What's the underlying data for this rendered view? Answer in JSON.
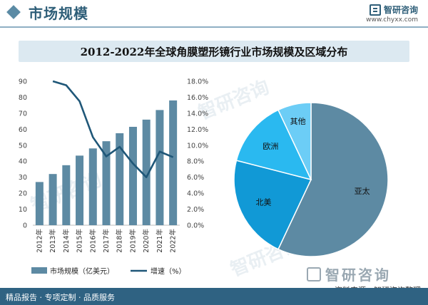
{
  "header": {
    "section_title": "市场规模",
    "brand_name": "智研咨询",
    "brand_url": "www.chyxx.com"
  },
  "title": "2012-2022年全球角膜塑形镜行业市场规模及区域分布",
  "watermark_text": "智研咨询",
  "legend": {
    "bar_label": "市场规模（亿美元）",
    "line_label": "增速（%）"
  },
  "chart_data": [
    {
      "type": "bar",
      "categories": [
        "2012年",
        "2013年",
        "2014年",
        "2015年",
        "2016年",
        "2017年",
        "2018年",
        "2019年",
        "2020年",
        "2021年",
        "2022年"
      ],
      "series": [
        {
          "name": "市场规模（亿美元）",
          "type": "bar",
          "axis": "left",
          "values": [
            27,
            32,
            37.5,
            43.5,
            48,
            52.5,
            57.5,
            61.5,
            66,
            72,
            78
          ],
          "color": "#5d8aa3"
        },
        {
          "name": "增速（%）",
          "type": "line",
          "axis": "right",
          "values": [
            null,
            18.0,
            17.5,
            15.5,
            11.0,
            8.6,
            9.8,
            7.7,
            6.0,
            9.2,
            8.5
          ],
          "color": "#1f5778"
        }
      ],
      "ylim_left": [
        0,
        90
      ],
      "ylim_right": [
        0,
        18
      ],
      "left_ticks": [
        "0",
        "10",
        "20",
        "30",
        "40",
        "50",
        "60",
        "70",
        "80",
        "90"
      ],
      "right_ticks": [
        "0.0%",
        "2.0%",
        "4.0%",
        "6.0%",
        "8.0%",
        "10.0%",
        "12.0%",
        "14.0%",
        "16.0%",
        "18.0%"
      ]
    },
    {
      "type": "pie",
      "slices": [
        {
          "label": "亚太",
          "value": 57,
          "color": "#5d8aa3"
        },
        {
          "label": "北美",
          "value": 22,
          "color": "#1199d6"
        },
        {
          "label": "欧洲",
          "value": 14,
          "color": "#2ab9f0"
        },
        {
          "label": "其他",
          "value": 7,
          "color": "#6ccdf6"
        }
      ]
    }
  ],
  "footer": {
    "text": "精品报告 · 专项定制 · 品质服务",
    "source": "资料来源：智研咨询整理"
  }
}
